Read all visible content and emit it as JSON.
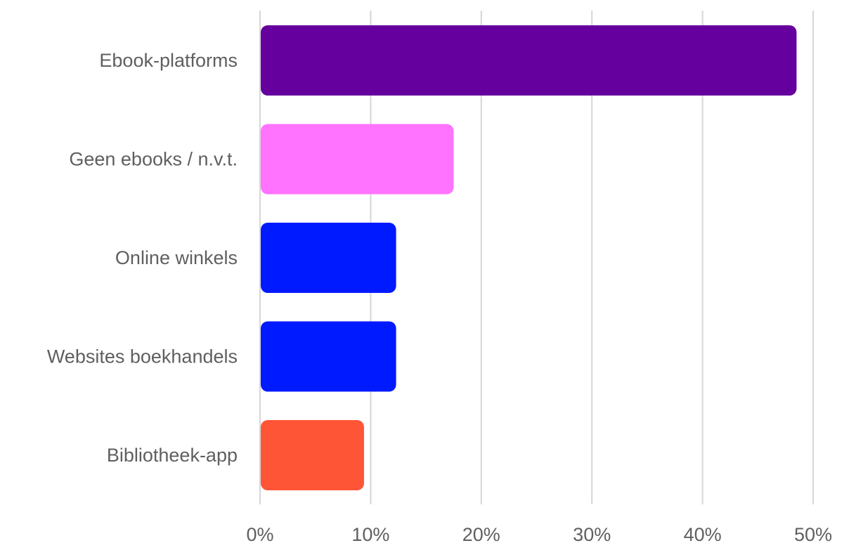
{
  "chart_data": {
    "type": "bar",
    "orientation": "horizontal",
    "categories": [
      "Ebook-platforms",
      "Geen ebooks / n.v.t.",
      "Online winkels",
      "Websites boekhandels",
      "Bibliotheek-app"
    ],
    "values": [
      48.5,
      17.5,
      12.3,
      12.3,
      9.4
    ],
    "colors": [
      "#65009E",
      "#FF73FF",
      "#001AFF",
      "#001AFF",
      "#FF5537"
    ],
    "xlim": [
      0,
      50
    ],
    "xticks": [
      0,
      10,
      20,
      30,
      40,
      50
    ],
    "tick_suffix": "%",
    "grid": true
  }
}
